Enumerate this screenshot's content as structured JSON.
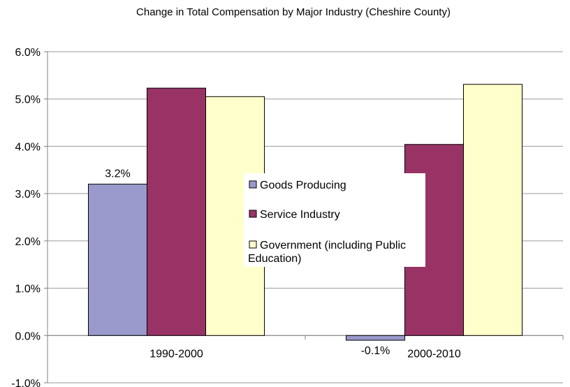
{
  "chart_data": {
    "type": "bar",
    "title": "Change in Total Compensation by Major Industry (Cheshire County)",
    "xlabel": "",
    "ylabel": "",
    "categories": [
      "1990-2000",
      "2000-2010"
    ],
    "series": [
      {
        "name": "Goods Producing",
        "values": [
          3.2,
          -0.1
        ],
        "color": "#9999cc"
      },
      {
        "name": "Service Industry",
        "values": [
          5.23,
          4.04
        ],
        "color": "#993366"
      },
      {
        "name": "Government (including Public Education)",
        "values": [
          5.05,
          5.31
        ],
        "color": "#ffffcc"
      }
    ],
    "data_labels": [
      {
        "series": 0,
        "category": 0,
        "text": "3.2%"
      },
      {
        "series": 0,
        "category": 1,
        "text": "-0.1%"
      }
    ],
    "ylim": [
      -1.0,
      6.0
    ],
    "yticks": [
      "-1.0%",
      "0.0%",
      "1.0%",
      "2.0%",
      "3.0%",
      "4.0%",
      "5.0%",
      "6.0%"
    ],
    "grid": true,
    "legend_position": "center"
  }
}
